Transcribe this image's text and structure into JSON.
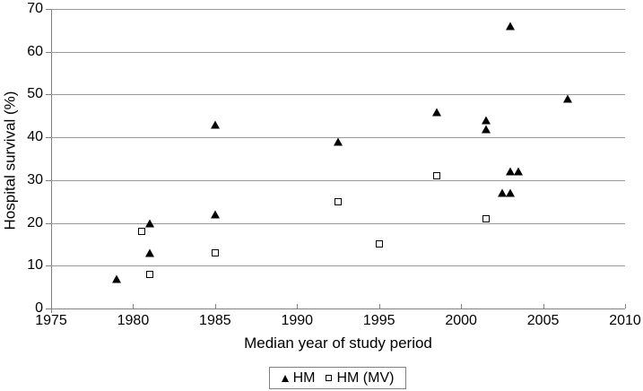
{
  "chart_data": {
    "type": "scatter",
    "title": "",
    "xlabel": "Median year of study period",
    "ylabel": "Hospital survival (%)",
    "xlim": [
      1975,
      2010
    ],
    "ylim": [
      0,
      70
    ],
    "x_ticks": [
      1975,
      1980,
      1985,
      1990,
      1995,
      2000,
      2005,
      2010
    ],
    "y_ticks": [
      0,
      10,
      20,
      30,
      40,
      50,
      60,
      70
    ],
    "grid": "horizontal-only",
    "legend_position": "bottom-center-boxed",
    "series": [
      {
        "name": "HM",
        "marker": "filled-triangle",
        "color": "#000000",
        "points": [
          [
            1979,
            7
          ],
          [
            1981,
            13
          ],
          [
            1981,
            20
          ],
          [
            1985,
            22
          ],
          [
            1985,
            43
          ],
          [
            1992.5,
            39
          ],
          [
            1998.5,
            46
          ],
          [
            2001.5,
            42
          ],
          [
            2001.5,
            44
          ],
          [
            2002.5,
            27
          ],
          [
            2003,
            27
          ],
          [
            2003,
            32
          ],
          [
            2003.5,
            32
          ],
          [
            2003,
            66
          ],
          [
            2006.5,
            49
          ]
        ]
      },
      {
        "name": "HM (MV)",
        "marker": "open-square",
        "color": "#000000",
        "points": [
          [
            1980.5,
            18
          ],
          [
            1981,
            8
          ],
          [
            1985,
            13
          ],
          [
            1992.5,
            25
          ],
          [
            1995,
            15
          ],
          [
            1998.5,
            31
          ],
          [
            2001.5,
            21
          ]
        ]
      }
    ]
  },
  "colors": {
    "background": "#ffffff",
    "gridline": "#999999",
    "axis": "#808080",
    "text": "#000000",
    "marker": "#000000",
    "legend_border": "#808080"
  }
}
